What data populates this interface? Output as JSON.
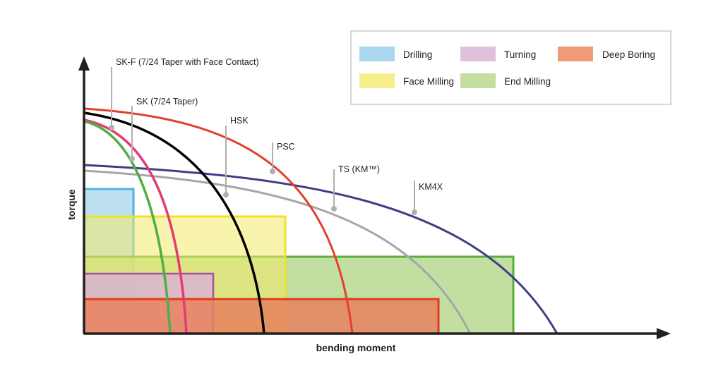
{
  "axes": {
    "x_label": "bending moment",
    "y_label": "torque"
  },
  "legend": {
    "drilling": {
      "label": "Drilling",
      "color": "#a8d7ee"
    },
    "turning": {
      "label": "Turning",
      "color": "#e0c1dc"
    },
    "deep_boring": {
      "label": "Deep Boring",
      "color": "#f29a78"
    },
    "face_milling": {
      "label": "Face Milling",
      "color": "#f6ee8a"
    },
    "end_milling": {
      "label": "End Milling",
      "color": "#c4dea0"
    }
  },
  "curves": {
    "sk_f": {
      "label": "SK-F (7/24 Taper with Face Contact)",
      "color": "#4fae45"
    },
    "sk": {
      "label": "SK (7/24 Taper)",
      "color": "#e33b74"
    },
    "hsk": {
      "label": "HSK",
      "color": "#000000"
    },
    "psc": {
      "label": "PSC",
      "color": "#e2402b"
    },
    "ts": {
      "label": "TS (KM™)",
      "color": "#a6a6a6"
    },
    "km4x": {
      "label": "KM4X",
      "color": "#3f3e86"
    }
  }
}
